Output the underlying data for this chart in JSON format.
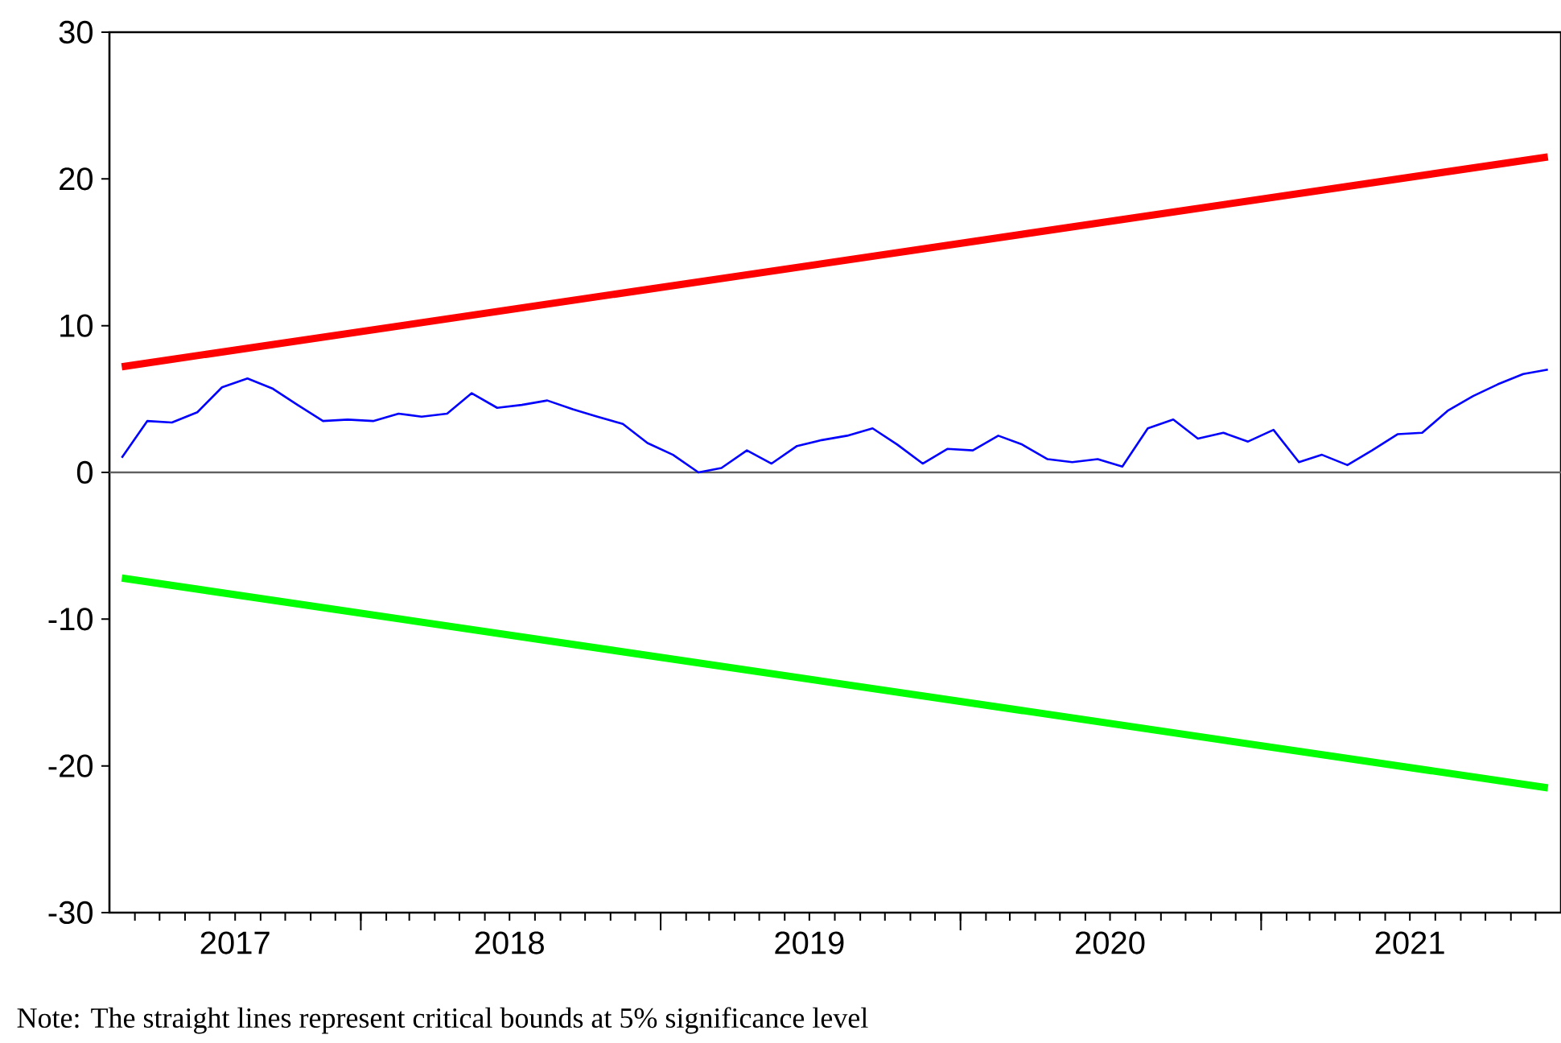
{
  "chart_data": {
    "type": "line",
    "x": [
      "2017-03-16",
      "2017-04-16",
      "2017-05-16",
      "2017-06-16",
      "2017-07-16",
      "2017-08-16",
      "2017-09-16",
      "2017-10-16",
      "2017-11-16",
      "2017-12-16",
      "2018-01-16",
      "2018-02-16",
      "2018-03-16",
      "2018-04-16",
      "2018-05-16",
      "2018-06-16",
      "2018-07-16",
      "2018-08-16",
      "2018-09-16",
      "2018-10-16",
      "2018-11-16",
      "2018-12-16",
      "2019-01-16",
      "2019-02-16",
      "2019-03-16",
      "2019-04-16",
      "2019-05-16",
      "2019-06-16",
      "2019-07-16",
      "2019-08-16",
      "2019-09-16",
      "2019-10-16",
      "2019-11-16",
      "2019-12-16",
      "2020-01-16",
      "2020-02-16",
      "2020-03-16",
      "2020-04-16",
      "2020-05-16",
      "2020-06-16",
      "2020-07-16",
      "2020-08-16",
      "2020-09-16",
      "2020-10-16",
      "2020-11-16",
      "2020-12-16",
      "2021-01-16",
      "2021-02-16",
      "2021-03-16",
      "2021-04-16",
      "2021-05-16",
      "2021-06-16",
      "2021-07-16",
      "2021-08-16",
      "2021-09-16",
      "2021-10-16",
      "2021-11-16",
      "2021-12-16"
    ],
    "series": [
      {
        "color": "#0000ff",
        "values": [
          1.0,
          3.5,
          3.4,
          4.1,
          5.8,
          6.4,
          5.7,
          4.6,
          3.5,
          3.6,
          3.5,
          4.0,
          3.8,
          4.0,
          5.4,
          4.4,
          4.6,
          4.9,
          4.3,
          3.8,
          3.3,
          2.0,
          1.2,
          0.0,
          0.3,
          1.5,
          0.6,
          1.8,
          2.2,
          2.5,
          3.0,
          1.9,
          0.6,
          1.6,
          1.5,
          2.5,
          1.9,
          0.9,
          0.7,
          0.9,
          0.4,
          3.0,
          3.6,
          2.3,
          2.7,
          2.1,
          2.9,
          0.7,
          1.2,
          0.5,
          1.5,
          2.6,
          2.7,
          4.2,
          5.2,
          6.0,
          6.7,
          7.0
        ]
      },
      {
        "color": "#ff0000",
        "x": [
          "2017-03-16",
          "2021-12-16"
        ],
        "values": [
          7.2,
          21.5
        ]
      },
      {
        "color": "#00ff00",
        "x": [
          "2017-03-16",
          "2021-12-16"
        ],
        "values": [
          -7.2,
          -21.5
        ]
      }
    ],
    "xlim": [
      "2017-03",
      "2022-01"
    ],
    "xticks": [
      {
        "value": "2017-04",
        "label": null
      },
      {
        "value": "2017-05",
        "label": null
      },
      {
        "value": "2017-06",
        "label": null
      },
      {
        "value": "2017-07",
        "label": null
      },
      {
        "value": "2017-08",
        "label": "2017"
      },
      {
        "value": "2017-09",
        "label": null
      },
      {
        "value": "2017-10",
        "label": null
      },
      {
        "value": "2017-11",
        "label": null
      },
      {
        "value": "2017-12",
        "label": null
      },
      {
        "value": "2018-01",
        "label": null
      },
      {
        "value": "2018-02",
        "label": null
      },
      {
        "value": "2018-03",
        "label": null
      },
      {
        "value": "2018-04",
        "label": null
      },
      {
        "value": "2018-05",
        "label": null
      },
      {
        "value": "2018-06",
        "label": null
      },
      {
        "value": "2018-07",
        "label": "2018"
      },
      {
        "value": "2018-08",
        "label": null
      },
      {
        "value": "2018-09",
        "label": null
      },
      {
        "value": "2018-10",
        "label": null
      },
      {
        "value": "2018-11",
        "label": null
      },
      {
        "value": "2018-12",
        "label": null
      },
      {
        "value": "2019-01",
        "label": null
      },
      {
        "value": "2019-02",
        "label": null
      },
      {
        "value": "2019-03",
        "label": null
      },
      {
        "value": "2019-04",
        "label": null
      },
      {
        "value": "2019-05",
        "label": null
      },
      {
        "value": "2019-06",
        "label": null
      },
      {
        "value": "2019-07",
        "label": "2019"
      },
      {
        "value": "2019-08",
        "label": null
      },
      {
        "value": "2019-09",
        "label": null
      },
      {
        "value": "2019-10",
        "label": null
      },
      {
        "value": "2019-11",
        "label": null
      },
      {
        "value": "2019-12",
        "label": null
      },
      {
        "value": "2020-01",
        "label": null
      },
      {
        "value": "2020-02",
        "label": null
      },
      {
        "value": "2020-03",
        "label": null
      },
      {
        "value": "2020-04",
        "label": null
      },
      {
        "value": "2020-05",
        "label": null
      },
      {
        "value": "2020-06",
        "label": null
      },
      {
        "value": "2020-07",
        "label": "2020"
      },
      {
        "value": "2020-08",
        "label": null
      },
      {
        "value": "2020-09",
        "label": null
      },
      {
        "value": "2020-10",
        "label": null
      },
      {
        "value": "2020-11",
        "label": null
      },
      {
        "value": "2020-12",
        "label": null
      },
      {
        "value": "2021-01",
        "label": null
      },
      {
        "value": "2021-02",
        "label": null
      },
      {
        "value": "2021-03",
        "label": null
      },
      {
        "value": "2021-04",
        "label": null
      },
      {
        "value": "2021-05",
        "label": null
      },
      {
        "value": "2021-06",
        "label": null
      },
      {
        "value": "2021-07",
        "label": "2021"
      },
      {
        "value": "2021-08",
        "label": null
      },
      {
        "value": "2021-09",
        "label": null
      },
      {
        "value": "2021-10",
        "label": null
      },
      {
        "value": "2021-11",
        "label": null
      },
      {
        "value": "2021-12",
        "label": null
      }
    ],
    "ylim": [
      -30,
      30
    ],
    "yticks": [
      -30,
      -20,
      -10,
      0,
      10,
      20,
      30
    ],
    "ref_lines": [
      {
        "axis": "y",
        "value": 0,
        "color": "#606060"
      }
    ],
    "line_style": "solid",
    "marker": "none",
    "grid": false,
    "annotations": [
      "Note: The straight lines represent critical bounds at 5% significance level"
    ]
  }
}
